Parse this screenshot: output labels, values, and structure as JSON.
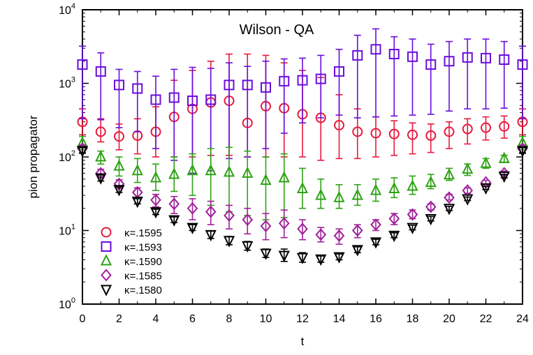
{
  "chart_data": {
    "type": "scatter",
    "title": "Wilson - QA",
    "xlabel": "t",
    "ylabel": "pion propagator",
    "xlim": [
      0,
      24
    ],
    "ylim_log10": [
      0,
      4
    ],
    "yscale": "log",
    "x_ticks": [
      "0",
      "2",
      "4",
      "6",
      "8",
      "10",
      "12",
      "14",
      "16",
      "18",
      "20",
      "22",
      "24"
    ],
    "y_tick_exponents": [
      "0",
      "1",
      "2",
      "3",
      "4"
    ],
    "y_tick_base": "10",
    "legend_placement": "bottom-left",
    "series": [
      {
        "name": "κ=.1595",
        "marker": "circle",
        "color": "#e8193c",
        "x": [
          0,
          1,
          2,
          3,
          4,
          5,
          6,
          7,
          8,
          9,
          10,
          11,
          12,
          13,
          14,
          15,
          16,
          17,
          18,
          19,
          20,
          21,
          22,
          23,
          24
        ],
        "y": [
          300,
          220,
          190,
          195,
          220,
          350,
          450,
          550,
          580,
          290,
          490,
          460,
          380,
          340,
          270,
          220,
          210,
          205,
          200,
          195,
          220,
          240,
          250,
          260,
          300
        ],
        "ylow": [
          200,
          160,
          125,
          110,
          100,
          100,
          100,
          105,
          105,
          100,
          100,
          100,
          100,
          90,
          95,
          95,
          100,
          105,
          110,
          115,
          130,
          150,
          170,
          180,
          200
        ],
        "yhigh": [
          450,
          330,
          280,
          330,
          480,
          1100,
          1500,
          2000,
          2500,
          2500,
          2400,
          1900,
          1500,
          1200,
          700,
          450,
          350,
          310,
          290,
          280,
          300,
          330,
          350,
          360,
          450
        ]
      },
      {
        "name": "κ=.1593",
        "marker": "square",
        "color": "#6a0dde",
        "x": [
          0,
          1,
          2,
          3,
          4,
          5,
          6,
          7,
          8,
          9,
          10,
          11,
          12,
          13,
          14,
          15,
          16,
          17,
          18,
          19,
          20,
          21,
          22,
          23,
          24
        ],
        "y": [
          1800,
          1450,
          950,
          850,
          600,
          640,
          580,
          600,
          950,
          950,
          880,
          1070,
          1100,
          1150,
          1450,
          2400,
          2900,
          2500,
          2300,
          1800,
          2000,
          2250,
          2200,
          2100,
          1800
        ],
        "ylow": [
          330,
          320,
          250,
          220,
          130,
          90,
          60,
          65,
          95,
          100,
          130,
          210,
          290,
          340,
          370,
          340,
          350,
          360,
          370,
          380,
          420,
          450,
          450,
          460,
          330
        ],
        "yhigh": [
          3200,
          2600,
          1550,
          1450,
          1250,
          1550,
          1650,
          1600,
          1900,
          1700,
          2000,
          2150,
          2200,
          2400,
          2900,
          4500,
          5500,
          4300,
          4000,
          3400,
          3700,
          4000,
          4000,
          3700,
          3200
        ]
      },
      {
        "name": "κ=.1590",
        "marker": "triangle-up",
        "color": "#2ea314",
        "x": [
          0,
          1,
          2,
          3,
          4,
          5,
          6,
          7,
          8,
          9,
          10,
          11,
          12,
          13,
          14,
          15,
          16,
          17,
          18,
          19,
          20,
          21,
          22,
          23,
          24
        ],
        "y": [
          155,
          100,
          75,
          65,
          52,
          58,
          65,
          65,
          62,
          60,
          48,
          52,
          37,
          30,
          28,
          30,
          35,
          37,
          40,
          45,
          57,
          68,
          82,
          95,
          155
        ],
        "ylow": [
          125,
          80,
          55,
          45,
          35,
          34,
          30,
          22,
          18,
          16,
          14,
          15,
          20,
          20,
          20,
          22,
          25,
          28,
          31,
          37,
          48,
          56,
          70,
          85,
          125
        ],
        "yhigh": [
          190,
          120,
          100,
          95,
          80,
          100,
          110,
          130,
          135,
          120,
          100,
          110,
          70,
          50,
          42,
          42,
          50,
          52,
          55,
          58,
          70,
          80,
          95,
          105,
          190
        ]
      },
      {
        "name": "κ=.1585",
        "marker": "diamond",
        "color": "#a0209a",
        "x": [
          0,
          1,
          2,
          3,
          4,
          5,
          6,
          7,
          8,
          9,
          10,
          11,
          12,
          13,
          14,
          15,
          16,
          17,
          18,
          19,
          20,
          21,
          22,
          23,
          24
        ],
        "y": [
          130,
          60,
          43,
          33,
          26,
          23,
          20,
          18,
          16,
          14,
          11.5,
          12.5,
          10.5,
          8.8,
          8.5,
          10,
          12,
          14.5,
          16.5,
          21,
          28,
          35,
          45,
          60,
          130
        ],
        "ylow": [
          115,
          52,
          37,
          28,
          21,
          17,
          14,
          12,
          10.5,
          9,
          7.5,
          8,
          7.5,
          7,
          6.5,
          8,
          10,
          12,
          14.5,
          19,
          26,
          32,
          42,
          56,
          115
        ],
        "yhigh": [
          145,
          68,
          49,
          38,
          31,
          29,
          27,
          25,
          22,
          20,
          17,
          19,
          14,
          11,
          10.5,
          12,
          14,
          17,
          19,
          23,
          31,
          38,
          48,
          64,
          145
        ]
      },
      {
        "name": "κ=.1580",
        "marker": "triangle-down",
        "color": "#000000",
        "x": [
          0,
          1,
          2,
          3,
          4,
          5,
          6,
          7,
          8,
          9,
          10,
          11,
          12,
          13,
          14,
          15,
          16,
          17,
          18,
          19,
          20,
          21,
          22,
          23,
          24
        ],
        "y": [
          122,
          52,
          36,
          25,
          18,
          14,
          11,
          8.8,
          7.3,
          6.2,
          4.9,
          4.6,
          4.3,
          4.1,
          4.4,
          5.5,
          7.0,
          8.6,
          11,
          14.5,
          20,
          27,
          38,
          55,
          122
        ],
        "ylow": [
          112,
          47,
          33,
          23,
          16.5,
          12.8,
          10,
          7.8,
          6.4,
          5.4,
          4.3,
          3.8,
          3.7,
          3.7,
          4.0,
          5.0,
          6.4,
          8.0,
          10.2,
          13.5,
          18.7,
          25.5,
          36,
          52,
          112
        ],
        "yhigh": [
          133,
          57,
          39,
          27,
          19.5,
          15.3,
          12,
          9.8,
          8.3,
          7.1,
          5.6,
          5.6,
          5.0,
          4.5,
          4.8,
          6.0,
          7.6,
          9.3,
          11.8,
          15.5,
          21.3,
          28.5,
          40,
          58,
          133
        ]
      }
    ]
  }
}
